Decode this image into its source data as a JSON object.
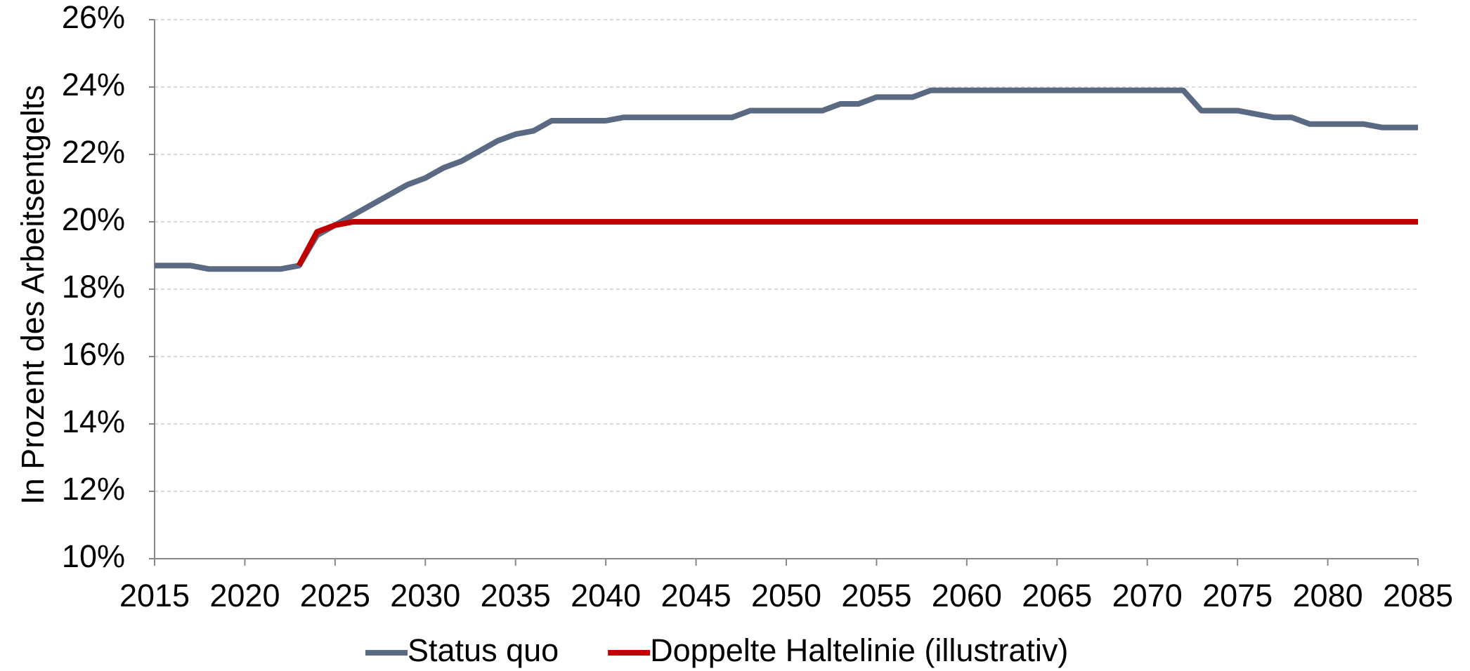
{
  "chart_data": {
    "type": "line",
    "ylabel": "In Prozent des Arbeitsentgelts",
    "x": [
      2015,
      2016,
      2017,
      2018,
      2019,
      2020,
      2021,
      2022,
      2023,
      2024,
      2025,
      2026,
      2027,
      2028,
      2029,
      2030,
      2031,
      2032,
      2033,
      2034,
      2035,
      2036,
      2037,
      2038,
      2039,
      2040,
      2041,
      2042,
      2043,
      2044,
      2045,
      2046,
      2047,
      2048,
      2049,
      2050,
      2051,
      2052,
      2053,
      2054,
      2055,
      2056,
      2057,
      2058,
      2059,
      2060,
      2061,
      2062,
      2063,
      2064,
      2065,
      2066,
      2067,
      2068,
      2069,
      2070,
      2071,
      2072,
      2073,
      2074,
      2075,
      2076,
      2077,
      2078,
      2079,
      2080,
      2081,
      2082,
      2083,
      2084,
      2085
    ],
    "series": [
      {
        "name": "Status quo",
        "color": "#5a6a82",
        "values": [
          18.7,
          18.7,
          18.7,
          18.6,
          18.6,
          18.6,
          18.6,
          18.6,
          18.7,
          19.6,
          19.9,
          20.2,
          20.5,
          20.8,
          21.1,
          21.3,
          21.6,
          21.8,
          22.1,
          22.4,
          22.6,
          22.7,
          23.0,
          23.0,
          23.0,
          23.0,
          23.1,
          23.1,
          23.1,
          23.1,
          23.1,
          23.1,
          23.1,
          23.3,
          23.3,
          23.3,
          23.3,
          23.3,
          23.5,
          23.5,
          23.7,
          23.7,
          23.7,
          23.9,
          23.9,
          23.9,
          23.9,
          23.9,
          23.9,
          23.9,
          23.9,
          23.9,
          23.9,
          23.9,
          23.9,
          23.9,
          23.9,
          23.9,
          23.3,
          23.3,
          23.3,
          23.2,
          23.1,
          23.1,
          22.9,
          22.9,
          22.9,
          22.9,
          22.8,
          22.8,
          22.8
        ]
      },
      {
        "name": "Doppelte Haltelinie (illustrativ)",
        "color": "#c00000",
        "values": [
          null,
          null,
          null,
          null,
          null,
          null,
          null,
          null,
          18.7,
          19.7,
          19.9,
          20,
          20,
          20,
          20,
          20,
          20,
          20,
          20,
          20,
          20,
          20,
          20,
          20,
          20,
          20,
          20,
          20,
          20,
          20,
          20,
          20,
          20,
          20,
          20,
          20,
          20,
          20,
          20,
          20,
          20,
          20,
          20,
          20,
          20,
          20,
          20,
          20,
          20,
          20,
          20,
          20,
          20,
          20,
          20,
          20,
          20,
          20,
          20,
          20,
          20,
          20,
          20,
          20,
          20,
          20,
          20,
          20,
          20,
          20,
          20
        ]
      }
    ],
    "xlim": [
      2015,
      2085
    ],
    "xticks": [
      2015,
      2020,
      2025,
      2030,
      2035,
      2040,
      2045,
      2050,
      2055,
      2060,
      2065,
      2070,
      2075,
      2080,
      2085
    ],
    "ylim": [
      10,
      26
    ],
    "yticks": [
      {
        "value": 10,
        "label": "10%"
      },
      {
        "value": 12,
        "label": "12%"
      },
      {
        "value": 14,
        "label": "14%"
      },
      {
        "value": 16,
        "label": "16%"
      },
      {
        "value": 18,
        "label": "18%"
      },
      {
        "value": 20,
        "label": "20%"
      },
      {
        "value": 22,
        "label": "22%"
      },
      {
        "value": 24,
        "label": "24%"
      },
      {
        "value": 26,
        "label": "26%"
      }
    ],
    "grid": true,
    "legend": "bottom"
  }
}
